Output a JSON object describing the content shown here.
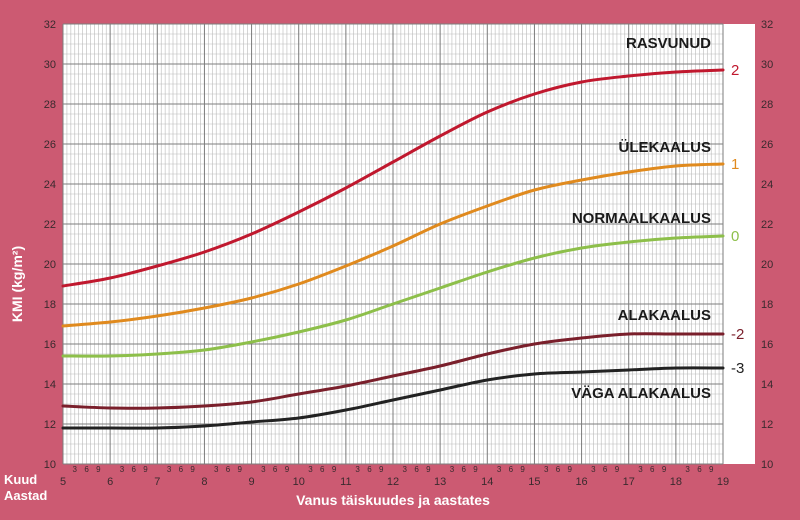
{
  "chart_data": {
    "type": "line",
    "title": "",
    "xlabel": "Vanus täiskuudes ja aastates",
    "ylabel": "KMI (kg/m²)",
    "corner_labels": [
      "Kuud",
      "Aastad"
    ],
    "xlim": [
      5,
      19
    ],
    "ylim": [
      10,
      32
    ],
    "x_ticks": [
      5,
      6,
      7,
      8,
      9,
      10,
      11,
      12,
      13,
      14,
      15,
      16,
      17,
      18,
      19
    ],
    "y_ticks": [
      10,
      12,
      14,
      16,
      18,
      20,
      22,
      24,
      26,
      28,
      30,
      32
    ],
    "month_ticks": [
      "3",
      "6",
      "9"
    ],
    "grid": true,
    "series": [
      {
        "name": "2",
        "color": "#c0182e",
        "x": [
          5,
          6,
          7,
          8,
          9,
          10,
          11,
          12,
          13,
          14,
          15,
          16,
          17,
          18,
          19
        ],
        "values": [
          18.9,
          19.3,
          19.9,
          20.6,
          21.5,
          22.6,
          23.8,
          25.1,
          26.4,
          27.6,
          28.5,
          29.1,
          29.4,
          29.6,
          29.7
        ]
      },
      {
        "name": "1",
        "color": "#e08a1e",
        "x": [
          5,
          6,
          7,
          8,
          9,
          10,
          11,
          12,
          13,
          14,
          15,
          16,
          17,
          18,
          19
        ],
        "values": [
          16.9,
          17.1,
          17.4,
          17.8,
          18.3,
          19.0,
          19.9,
          20.9,
          22.0,
          22.9,
          23.7,
          24.2,
          24.6,
          24.9,
          25.0
        ]
      },
      {
        "name": "0",
        "color": "#8dbf4a",
        "x": [
          5,
          6,
          7,
          8,
          9,
          10,
          11,
          12,
          13,
          14,
          15,
          16,
          17,
          18,
          19
        ],
        "values": [
          15.4,
          15.4,
          15.5,
          15.7,
          16.1,
          16.6,
          17.2,
          18.0,
          18.8,
          19.6,
          20.3,
          20.8,
          21.1,
          21.3,
          21.4
        ]
      },
      {
        "name": "-2",
        "color": "#7a1f2b",
        "x": [
          5,
          6,
          7,
          8,
          9,
          10,
          11,
          12,
          13,
          14,
          15,
          16,
          17,
          18,
          19
        ],
        "values": [
          12.9,
          12.8,
          12.8,
          12.9,
          13.1,
          13.5,
          13.9,
          14.4,
          14.9,
          15.5,
          16.0,
          16.3,
          16.5,
          16.5,
          16.5
        ]
      },
      {
        "name": "-3",
        "color": "#222222",
        "x": [
          5,
          6,
          7,
          8,
          9,
          10,
          11,
          12,
          13,
          14,
          15,
          16,
          17,
          18,
          19
        ],
        "values": [
          11.8,
          11.8,
          11.8,
          11.9,
          12.1,
          12.3,
          12.7,
          13.2,
          13.7,
          14.2,
          14.5,
          14.6,
          14.7,
          14.8,
          14.8
        ]
      }
    ],
    "zones": [
      "RASVUNUD",
      "ÜLEKAALUS",
      "NORMAALKAALUS",
      "ALAKAALUS",
      "VÄGA ALAKAALUS"
    ]
  }
}
